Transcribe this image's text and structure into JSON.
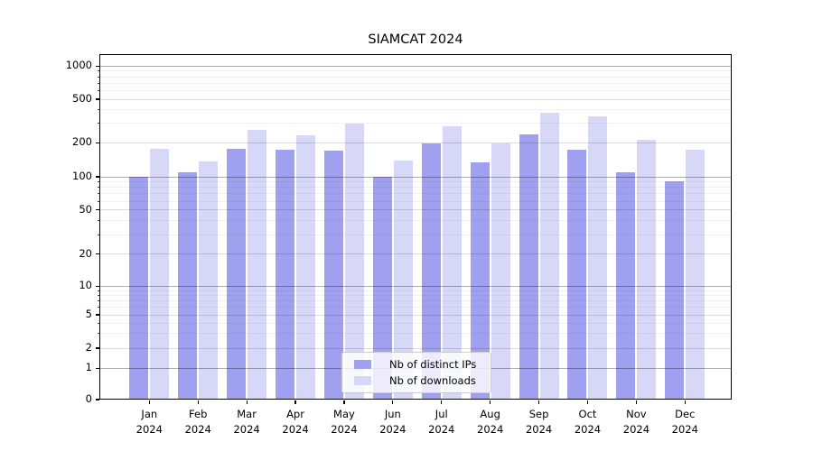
{
  "title": "SIAMCAT 2024",
  "legend": {
    "items": [
      {
        "label": "Nb of distinct IPs"
      },
      {
        "label": "Nb of downloads"
      }
    ]
  },
  "y_axis": {
    "tick_labels": [
      "0",
      "1",
      "2",
      "5",
      "10",
      "20",
      "50",
      "100",
      "200",
      "500",
      "1000"
    ]
  },
  "x_axis": {
    "months": [
      "Jan",
      "Feb",
      "Mar",
      "Apr",
      "May",
      "Jun",
      "Jul",
      "Aug",
      "Sep",
      "Oct",
      "Nov",
      "Dec"
    ],
    "year": "2024"
  },
  "colors": {
    "distinct_ips": "#a0a0f0",
    "downloads": "#d7d7f8",
    "grid_major": "#b3b3b3",
    "grid_mid": "#dcdcdc"
  },
  "chart_data": {
    "type": "bar",
    "title": "SIAMCAT 2024",
    "categories": [
      "Jan 2024",
      "Feb 2024",
      "Mar 2024",
      "Apr 2024",
      "May 2024",
      "Jun 2024",
      "Jul 2024",
      "Aug 2024",
      "Sep 2024",
      "Oct 2024",
      "Nov 2024",
      "Dec 2024"
    ],
    "series": [
      {
        "name": "Nb of distinct IPs",
        "color": "#a0a0f0",
        "values": [
          100,
          110,
          178,
          173,
          170,
          100,
          198,
          135,
          237,
          173,
          110,
          91
        ]
      },
      {
        "name": "Nb of downloads",
        "color": "#d7d7f8",
        "values": [
          176,
          137,
          262,
          232,
          301,
          139,
          281,
          196,
          378,
          351,
          214,
          175
        ]
      }
    ],
    "yscale": "symlog",
    "yticks": [
      0,
      1,
      2,
      5,
      10,
      20,
      50,
      100,
      200,
      500,
      1000
    ],
    "ylim": [
      0,
      1270
    ],
    "grid": true,
    "legend_position": "lower center"
  }
}
